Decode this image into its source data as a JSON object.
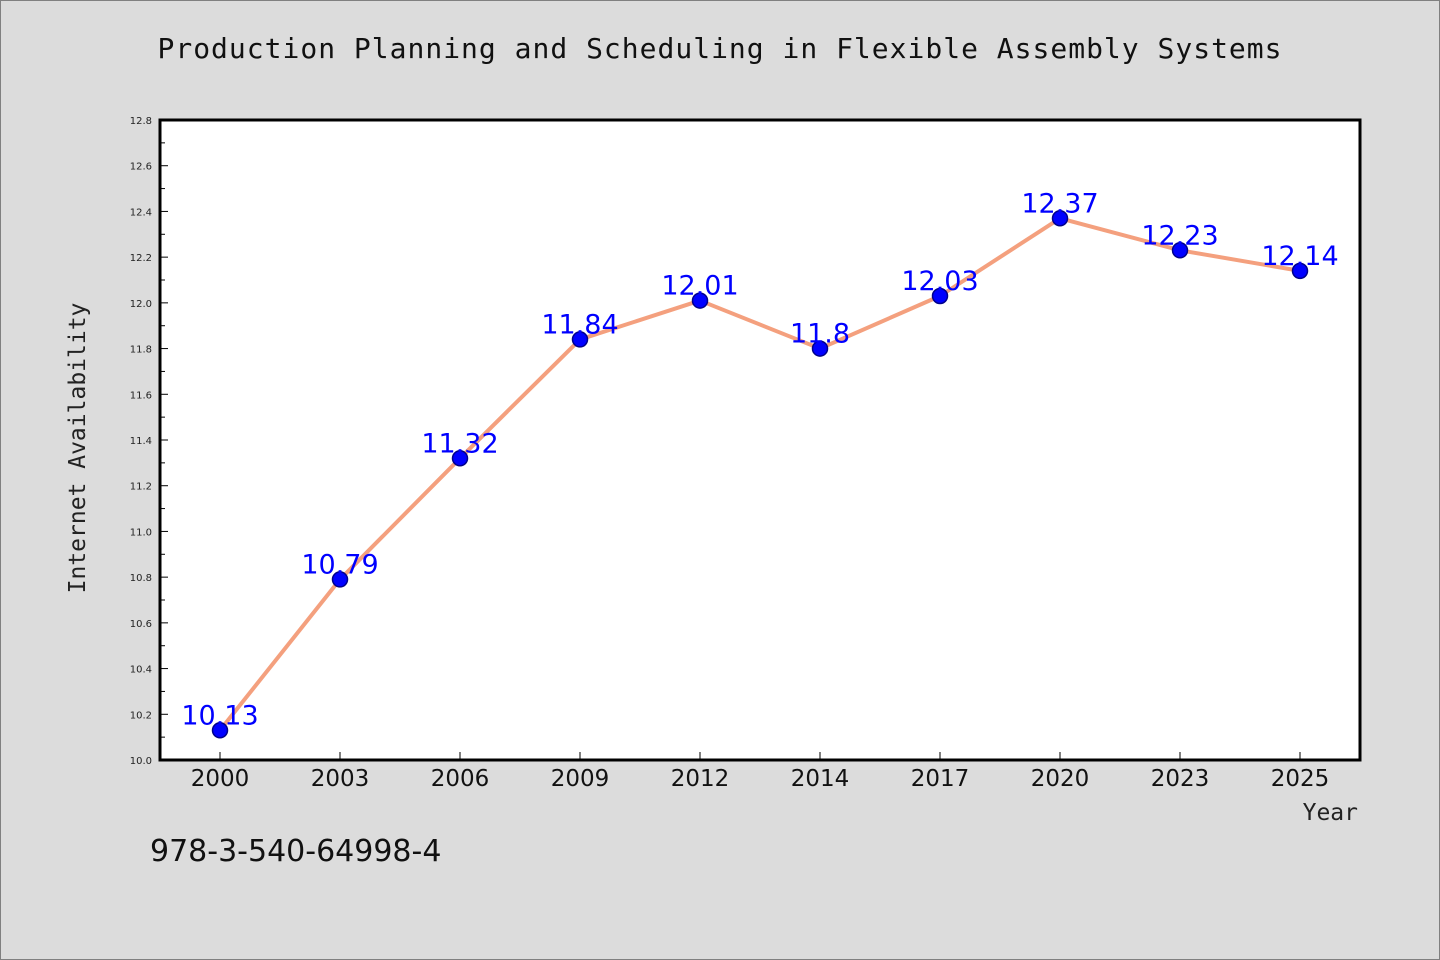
{
  "chart_data": {
    "type": "line",
    "title": "Production Planning and Scheduling in Flexible Assembly Systems",
    "xlabel": "Year",
    "ylabel": "Internet Availability",
    "categories": [
      "2000",
      "2003",
      "2006",
      "2009",
      "2012",
      "2014",
      "2017",
      "2020",
      "2023",
      "2025"
    ],
    "series": [
      {
        "values": [
          10.13,
          10.79,
          11.32,
          11.84,
          12.01,
          11.8,
          12.03,
          12.37,
          12.23,
          12.14
        ],
        "data_labels": [
          "10.13",
          "10.79",
          "11.32",
          "11.84",
          "12.01",
          "11.8",
          "12.03",
          "12.37",
          "12.23",
          "12.14"
        ]
      }
    ],
    "ylim": [
      10.0,
      12.8
    ],
    "yticks": [
      "10.0",
      "10.2",
      "10.4",
      "10.6",
      "10.8",
      "11.0",
      "11.2",
      "11.4",
      "11.6",
      "11.8",
      "12.0",
      "12.2",
      "12.4",
      "12.6",
      "12.8"
    ],
    "grid": false,
    "legend": "none",
    "colors": {
      "line": "#f4a07e",
      "marker": "#0000ff",
      "marker_edge": "#00008b",
      "data_label": "#0000ff",
      "plot_background": "#ffffff",
      "page_background": "#dcdcdc"
    }
  },
  "caption": "978-3-540-64998-4"
}
